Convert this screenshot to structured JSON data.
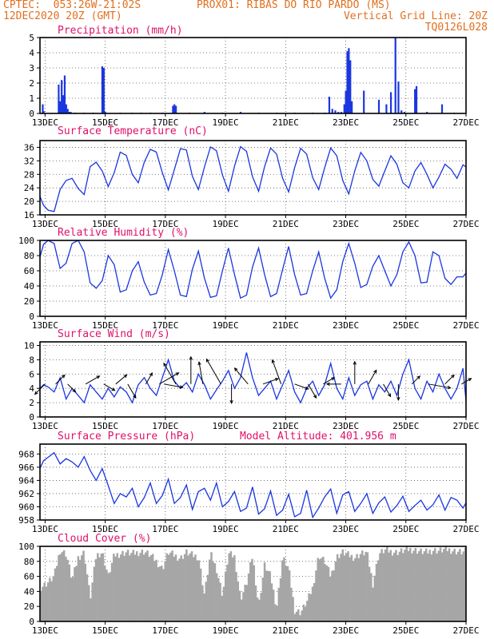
{
  "header": {
    "line1_left": "CPTEC:  053:26W-21:02S",
    "line1_right": "PROX01: RIBAS DO RIO PARDO (MS)",
    "line2_left": "12DEC2020 20Z (GMT)",
    "line2_right": "Vertical Grid Line: 20Z",
    "line3_right": "TQ0126L028"
  },
  "colors": {
    "header": "#e07020",
    "title": "#e0106a",
    "series": "#1a36e0",
    "cloud": "#a6a6a6",
    "axis": "#000000"
  },
  "x_tick_labels": [
    "13DEC",
    "15DEC",
    "17DEC",
    "19DEC",
    "21DEC",
    "23DEC",
    "25DEC",
    "27DEC"
  ],
  "chart_data": [
    {
      "type": "bar",
      "title": "Precipitation (mm/h)",
      "y_ticks": [
        "0",
        "1",
        "2",
        "3",
        "4",
        "5"
      ],
      "ylim": [
        0,
        5
      ],
      "xlim_days": [
        12.83,
        27.0
      ],
      "x": [
        12.92,
        12.95,
        13.45,
        13.5,
        13.55,
        13.6,
        13.65,
        13.7,
        13.75,
        13.8,
        13.85,
        14.0,
        14.3,
        14.6,
        14.9,
        14.95,
        15.0,
        15.5,
        15.9,
        16.2,
        16.5,
        16.9,
        17.25,
        17.3,
        17.35,
        17.8,
        18.3,
        18.9,
        19.5,
        20.1,
        20.7,
        21.3,
        21.9,
        22.3,
        22.45,
        22.55,
        22.65,
        22.75,
        22.85,
        22.95,
        23.0,
        23.05,
        23.1,
        23.15,
        23.2,
        23.6,
        24.1,
        24.35,
        24.5,
        24.65,
        24.75,
        24.85,
        24.95,
        25.3,
        25.35,
        25.7,
        26.2,
        26.6
      ],
      "values": [
        0.6,
        0.15,
        1.9,
        0.8,
        2.2,
        1.2,
        2.5,
        0.6,
        0.3,
        0.1,
        0.1,
        0.05,
        0.05,
        0.05,
        3.1,
        3.0,
        0.1,
        0.05,
        0.05,
        0.05,
        0.05,
        0.05,
        0.5,
        0.6,
        0.5,
        0.05,
        0.1,
        0.05,
        0.1,
        0.05,
        0.05,
        0.05,
        0.05,
        0.05,
        1.1,
        0.3,
        0.2,
        0.1,
        0.1,
        0.6,
        1.5,
        4.1,
        4.3,
        3.5,
        0.8,
        1.5,
        0.9,
        0.6,
        1.4,
        5.0,
        2.1,
        0.2,
        0.1,
        1.6,
        1.8,
        0.1,
        0.6,
        0.05
      ]
    },
    {
      "type": "line",
      "title": "Surface Temperature (nC)",
      "y_ticks": [
        "16",
        "20",
        "24",
        "28",
        "32",
        "36"
      ],
      "ylim": [
        16,
        38
      ],
      "xlim_days": [
        12.83,
        27.0
      ],
      "x": [
        12.83,
        12.95,
        13.1,
        13.3,
        13.5,
        13.7,
        13.9,
        14.1,
        14.3,
        14.5,
        14.7,
        14.9,
        15.1,
        15.3,
        15.5,
        15.7,
        15.9,
        16.1,
        16.3,
        16.5,
        16.7,
        16.9,
        17.1,
        17.3,
        17.5,
        17.7,
        17.9,
        18.1,
        18.3,
        18.5,
        18.7,
        18.9,
        19.1,
        19.3,
        19.5,
        19.7,
        19.9,
        20.1,
        20.3,
        20.5,
        20.7,
        20.9,
        21.1,
        21.3,
        21.5,
        21.7,
        21.9,
        22.1,
        22.3,
        22.5,
        22.7,
        22.9,
        23.1,
        23.3,
        23.5,
        23.7,
        23.9,
        24.1,
        24.3,
        24.5,
        24.7,
        24.9,
        25.1,
        25.3,
        25.5,
        25.7,
        25.9,
        26.1,
        26.3,
        26.5,
        26.7,
        26.9,
        27.0
      ],
      "values": [
        21.5,
        18.8,
        17.4,
        17.0,
        23.5,
        26.2,
        26.8,
        23.8,
        22.0,
        30.3,
        31.6,
        29.0,
        24.4,
        28.5,
        34.6,
        33.6,
        28.0,
        25.5,
        31.6,
        35.4,
        34.6,
        28.5,
        23.4,
        29.4,
        35.6,
        35.2,
        27.4,
        23.5,
        30.2,
        36.1,
        35.0,
        27.8,
        23.0,
        30.4,
        36.2,
        34.8,
        27.3,
        23.0,
        30.3,
        35.8,
        34.0,
        26.8,
        22.8,
        30.0,
        35.7,
        34.0,
        27.0,
        23.5,
        30.0,
        35.8,
        33.5,
        26.2,
        22.2,
        29.0,
        34.5,
        32.0,
        26.5,
        24.5,
        29.0,
        33.5,
        31.0,
        25.5,
        24.0,
        29.0,
        31.5,
        28.0,
        24.0,
        27.2,
        31.0,
        29.5,
        26.8,
        30.8,
        30.2
      ]
    },
    {
      "type": "line",
      "title": "Relative Humidity (%)",
      "y_ticks": [
        "0",
        "20",
        "40",
        "60",
        "80",
        "100"
      ],
      "ylim": [
        0,
        100
      ],
      "xlim_days": [
        12.83,
        27.0
      ],
      "x": [
        12.83,
        12.95,
        13.1,
        13.3,
        13.5,
        13.7,
        13.9,
        14.1,
        14.3,
        14.5,
        14.7,
        14.9,
        15.1,
        15.3,
        15.5,
        15.7,
        15.9,
        16.1,
        16.3,
        16.5,
        16.7,
        16.9,
        17.1,
        17.3,
        17.5,
        17.7,
        17.9,
        18.1,
        18.3,
        18.5,
        18.7,
        18.9,
        19.1,
        19.3,
        19.5,
        19.7,
        19.9,
        20.1,
        20.3,
        20.5,
        20.7,
        20.9,
        21.1,
        21.3,
        21.5,
        21.7,
        21.9,
        22.1,
        22.3,
        22.5,
        22.7,
        22.9,
        23.1,
        23.3,
        23.5,
        23.7,
        23.9,
        24.1,
        24.3,
        24.5,
        24.7,
        24.9,
        25.1,
        25.3,
        25.5,
        25.7,
        25.9,
        26.1,
        26.3,
        26.5,
        26.7,
        26.9,
        27.0
      ],
      "values": [
        78,
        95,
        100,
        96,
        63,
        70,
        96,
        100,
        85,
        44,
        37,
        47,
        80,
        68,
        32,
        35,
        60,
        72,
        45,
        28,
        30,
        55,
        88,
        60,
        28,
        26,
        62,
        86,
        50,
        25,
        27,
        60,
        90,
        55,
        24,
        28,
        65,
        90,
        55,
        26,
        30,
        62,
        92,
        55,
        28,
        30,
        60,
        85,
        50,
        24,
        35,
        72,
        96,
        70,
        38,
        42,
        66,
        80,
        60,
        40,
        55,
        85,
        98,
        80,
        44,
        45,
        85,
        80,
        50,
        42,
        52,
        52,
        57
      ]
    },
    {
      "type": "line",
      "title": "Surface Wind (m/s)",
      "y_ticks": [
        "0",
        "2",
        "4",
        "6",
        "8",
        "10"
      ],
      "ylim": [
        0,
        10.5
      ],
      "xlim_days": [
        12.83,
        27.0
      ],
      "x": [
        12.83,
        12.95,
        13.1,
        13.3,
        13.5,
        13.7,
        13.9,
        14.1,
        14.3,
        14.5,
        14.7,
        14.9,
        15.1,
        15.3,
        15.5,
        15.7,
        15.9,
        16.1,
        16.3,
        16.5,
        16.7,
        16.9,
        17.1,
        17.3,
        17.5,
        17.7,
        17.9,
        18.1,
        18.3,
        18.5,
        18.7,
        18.9,
        19.1,
        19.3,
        19.5,
        19.7,
        19.9,
        20.1,
        20.3,
        20.5,
        20.7,
        20.9,
        21.1,
        21.3,
        21.5,
        21.7,
        21.9,
        22.1,
        22.3,
        22.5,
        22.7,
        22.9,
        23.1,
        23.3,
        23.5,
        23.7,
        23.9,
        24.1,
        24.3,
        24.5,
        24.7,
        24.9,
        25.1,
        25.3,
        25.5,
        25.7,
        25.9,
        26.1,
        26.3,
        26.5,
        26.7,
        26.9,
        27.0
      ],
      "values": [
        4.0,
        4.5,
        4.2,
        3.5,
        5.5,
        2.5,
        4.0,
        3.0,
        2.0,
        4.5,
        3.5,
        2.5,
        4.0,
        2.8,
        4.2,
        3.5,
        2.0,
        4.5,
        5.5,
        4.0,
        3.0,
        5.5,
        8.0,
        5.0,
        4.0,
        4.8,
        3.5,
        6.0,
        4.5,
        2.5,
        3.8,
        5.0,
        6.5,
        4.0,
        5.5,
        9.0,
        5.5,
        3.0,
        4.0,
        5.0,
        2.5,
        4.5,
        6.5,
        3.5,
        2.0,
        4.0,
        5.0,
        3.0,
        4.5,
        7.5,
        4.0,
        2.5,
        5.5,
        3.0,
        4.5,
        5.0,
        2.5,
        4.5,
        3.5,
        5.0,
        3.0,
        6.0,
        8.0,
        4.0,
        2.5,
        5.0,
        3.5,
        6.0,
        4.0,
        2.5,
        4.0,
        6.8,
        2.2
      ],
      "arrows_time": [
        13.0,
        13.35,
        13.75,
        14.35,
        14.95,
        15.35,
        15.75,
        16.35,
        16.8,
        16.95,
        17.35,
        17.85,
        18.25,
        18.85,
        19.2,
        19.75,
        20.25,
        20.85,
        21.3,
        21.75,
        22.25,
        22.85,
        23.3,
        23.75,
        24.25,
        24.75,
        25.2,
        25.75,
        26.3,
        26.85
      ],
      "arrows_speed": [
        3.0,
        2.5,
        2.0,
        3.5,
        2.5,
        3.0,
        3.5,
        2.5,
        5.5,
        4.5,
        6.0,
        7.0,
        5.5,
        7.5,
        4.5,
        5.0,
        3.5,
        6.5,
        3.0,
        3.5,
        2.5,
        3.0,
        5.5,
        3.5,
        3.0,
        3.5,
        2.0,
        5.5,
        2.5,
        2.0
      ],
      "arrows_dir_deg": [
        225,
        45,
        315,
        30,
        330,
        40,
        300,
        60,
        30,
        350,
        120,
        90,
        100,
        120,
        270,
        130,
        20,
        110,
        340,
        300,
        30,
        180,
        90,
        60,
        300,
        270,
        45,
        350,
        45,
        30
      ]
    },
    {
      "type": "line",
      "title": "Surface Pressure (hPa)",
      "annotation": "Model Altitude: 401.956 m",
      "y_ticks": [
        "958",
        "960",
        "962",
        "964",
        "966",
        "968"
      ],
      "ylim": [
        958,
        969.5
      ],
      "xlim_days": [
        12.83,
        27.0
      ],
      "x": [
        12.83,
        12.95,
        13.1,
        13.3,
        13.5,
        13.7,
        13.9,
        14.1,
        14.3,
        14.5,
        14.7,
        14.9,
        15.1,
        15.3,
        15.5,
        15.7,
        15.9,
        16.1,
        16.3,
        16.5,
        16.7,
        16.9,
        17.1,
        17.3,
        17.5,
        17.7,
        17.9,
        18.1,
        18.3,
        18.5,
        18.7,
        18.9,
        19.1,
        19.3,
        19.5,
        19.7,
        19.9,
        20.1,
        20.3,
        20.5,
        20.7,
        20.9,
        21.1,
        21.3,
        21.5,
        21.7,
        21.9,
        22.1,
        22.3,
        22.5,
        22.7,
        22.9,
        23.1,
        23.3,
        23.5,
        23.7,
        23.9,
        24.1,
        24.3,
        24.5,
        24.7,
        24.9,
        25.1,
        25.3,
        25.5,
        25.7,
        25.9,
        26.1,
        26.3,
        26.5,
        26.7,
        26.9,
        27.0
      ],
      "values": [
        965.8,
        967.0,
        967.5,
        968.2,
        966.5,
        967.3,
        966.8,
        966.0,
        967.6,
        965.5,
        964.0,
        965.8,
        963.2,
        960.5,
        962.0,
        961.5,
        962.8,
        960.0,
        961.4,
        963.6,
        960.5,
        961.7,
        964.2,
        960.5,
        961.4,
        963.3,
        959.6,
        962.3,
        962.8,
        961.0,
        963.6,
        960.0,
        960.8,
        962.3,
        959.3,
        959.8,
        963.0,
        958.9,
        959.7,
        962.4,
        958.7,
        959.5,
        961.9,
        958.5,
        959.0,
        962.5,
        958.4,
        959.8,
        961.5,
        962.7,
        959.0,
        961.8,
        962.3,
        959.3,
        960.5,
        962.0,
        959.0,
        960.6,
        961.5,
        959.2,
        960.2,
        961.6,
        959.3,
        960.2,
        961.0,
        959.5,
        960.3,
        961.8,
        959.5,
        961.4,
        961.0,
        959.8,
        960.6
      ]
    },
    {
      "type": "area",
      "title": "Cloud Cover (%)",
      "y_ticks": [
        "0",
        "20",
        "40",
        "60",
        "80",
        "100"
      ],
      "ylim": [
        0,
        100
      ],
      "xlim_days": [
        12.83,
        27.0
      ],
      "x": [
        12.83,
        12.95,
        13.1,
        13.3,
        13.5,
        13.7,
        13.9,
        14.1,
        14.3,
        14.5,
        14.7,
        14.9,
        15.1,
        15.3,
        15.5,
        15.7,
        15.9,
        16.1,
        16.3,
        16.5,
        16.7,
        16.9,
        17.1,
        17.3,
        17.5,
        17.7,
        17.9,
        18.1,
        18.3,
        18.5,
        18.7,
        18.9,
        19.1,
        19.3,
        19.5,
        19.7,
        19.9,
        20.1,
        20.3,
        20.5,
        20.7,
        20.9,
        21.1,
        21.3,
        21.5,
        21.7,
        21.9,
        22.1,
        22.3,
        22.5,
        22.7,
        22.9,
        23.1,
        23.3,
        23.5,
        23.7,
        23.9,
        24.1,
        24.3,
        24.5,
        24.7,
        24.9,
        25.1,
        25.3,
        25.5,
        25.7,
        25.9,
        26.1,
        26.3,
        26.5,
        26.7,
        26.9,
        27.0
      ],
      "values": [
        45,
        48,
        52,
        60,
        95,
        90,
        55,
        85,
        92,
        30,
        88,
        92,
        60,
        88,
        90,
        92,
        90,
        92,
        93,
        88,
        80,
        70,
        92,
        88,
        84,
        92,
        88,
        86,
        35,
        90,
        70,
        35,
        90,
        86,
        30,
        50,
        88,
        20,
        75,
        60,
        18,
        85,
        70,
        15,
        12,
        25,
        45,
        88,
        80,
        60,
        86,
        92,
        88,
        85,
        90,
        92,
        50,
        90,
        95,
        93,
        92,
        94,
        96,
        95,
        93,
        92,
        95,
        94,
        96,
        95,
        93,
        92,
        94
      ]
    }
  ]
}
